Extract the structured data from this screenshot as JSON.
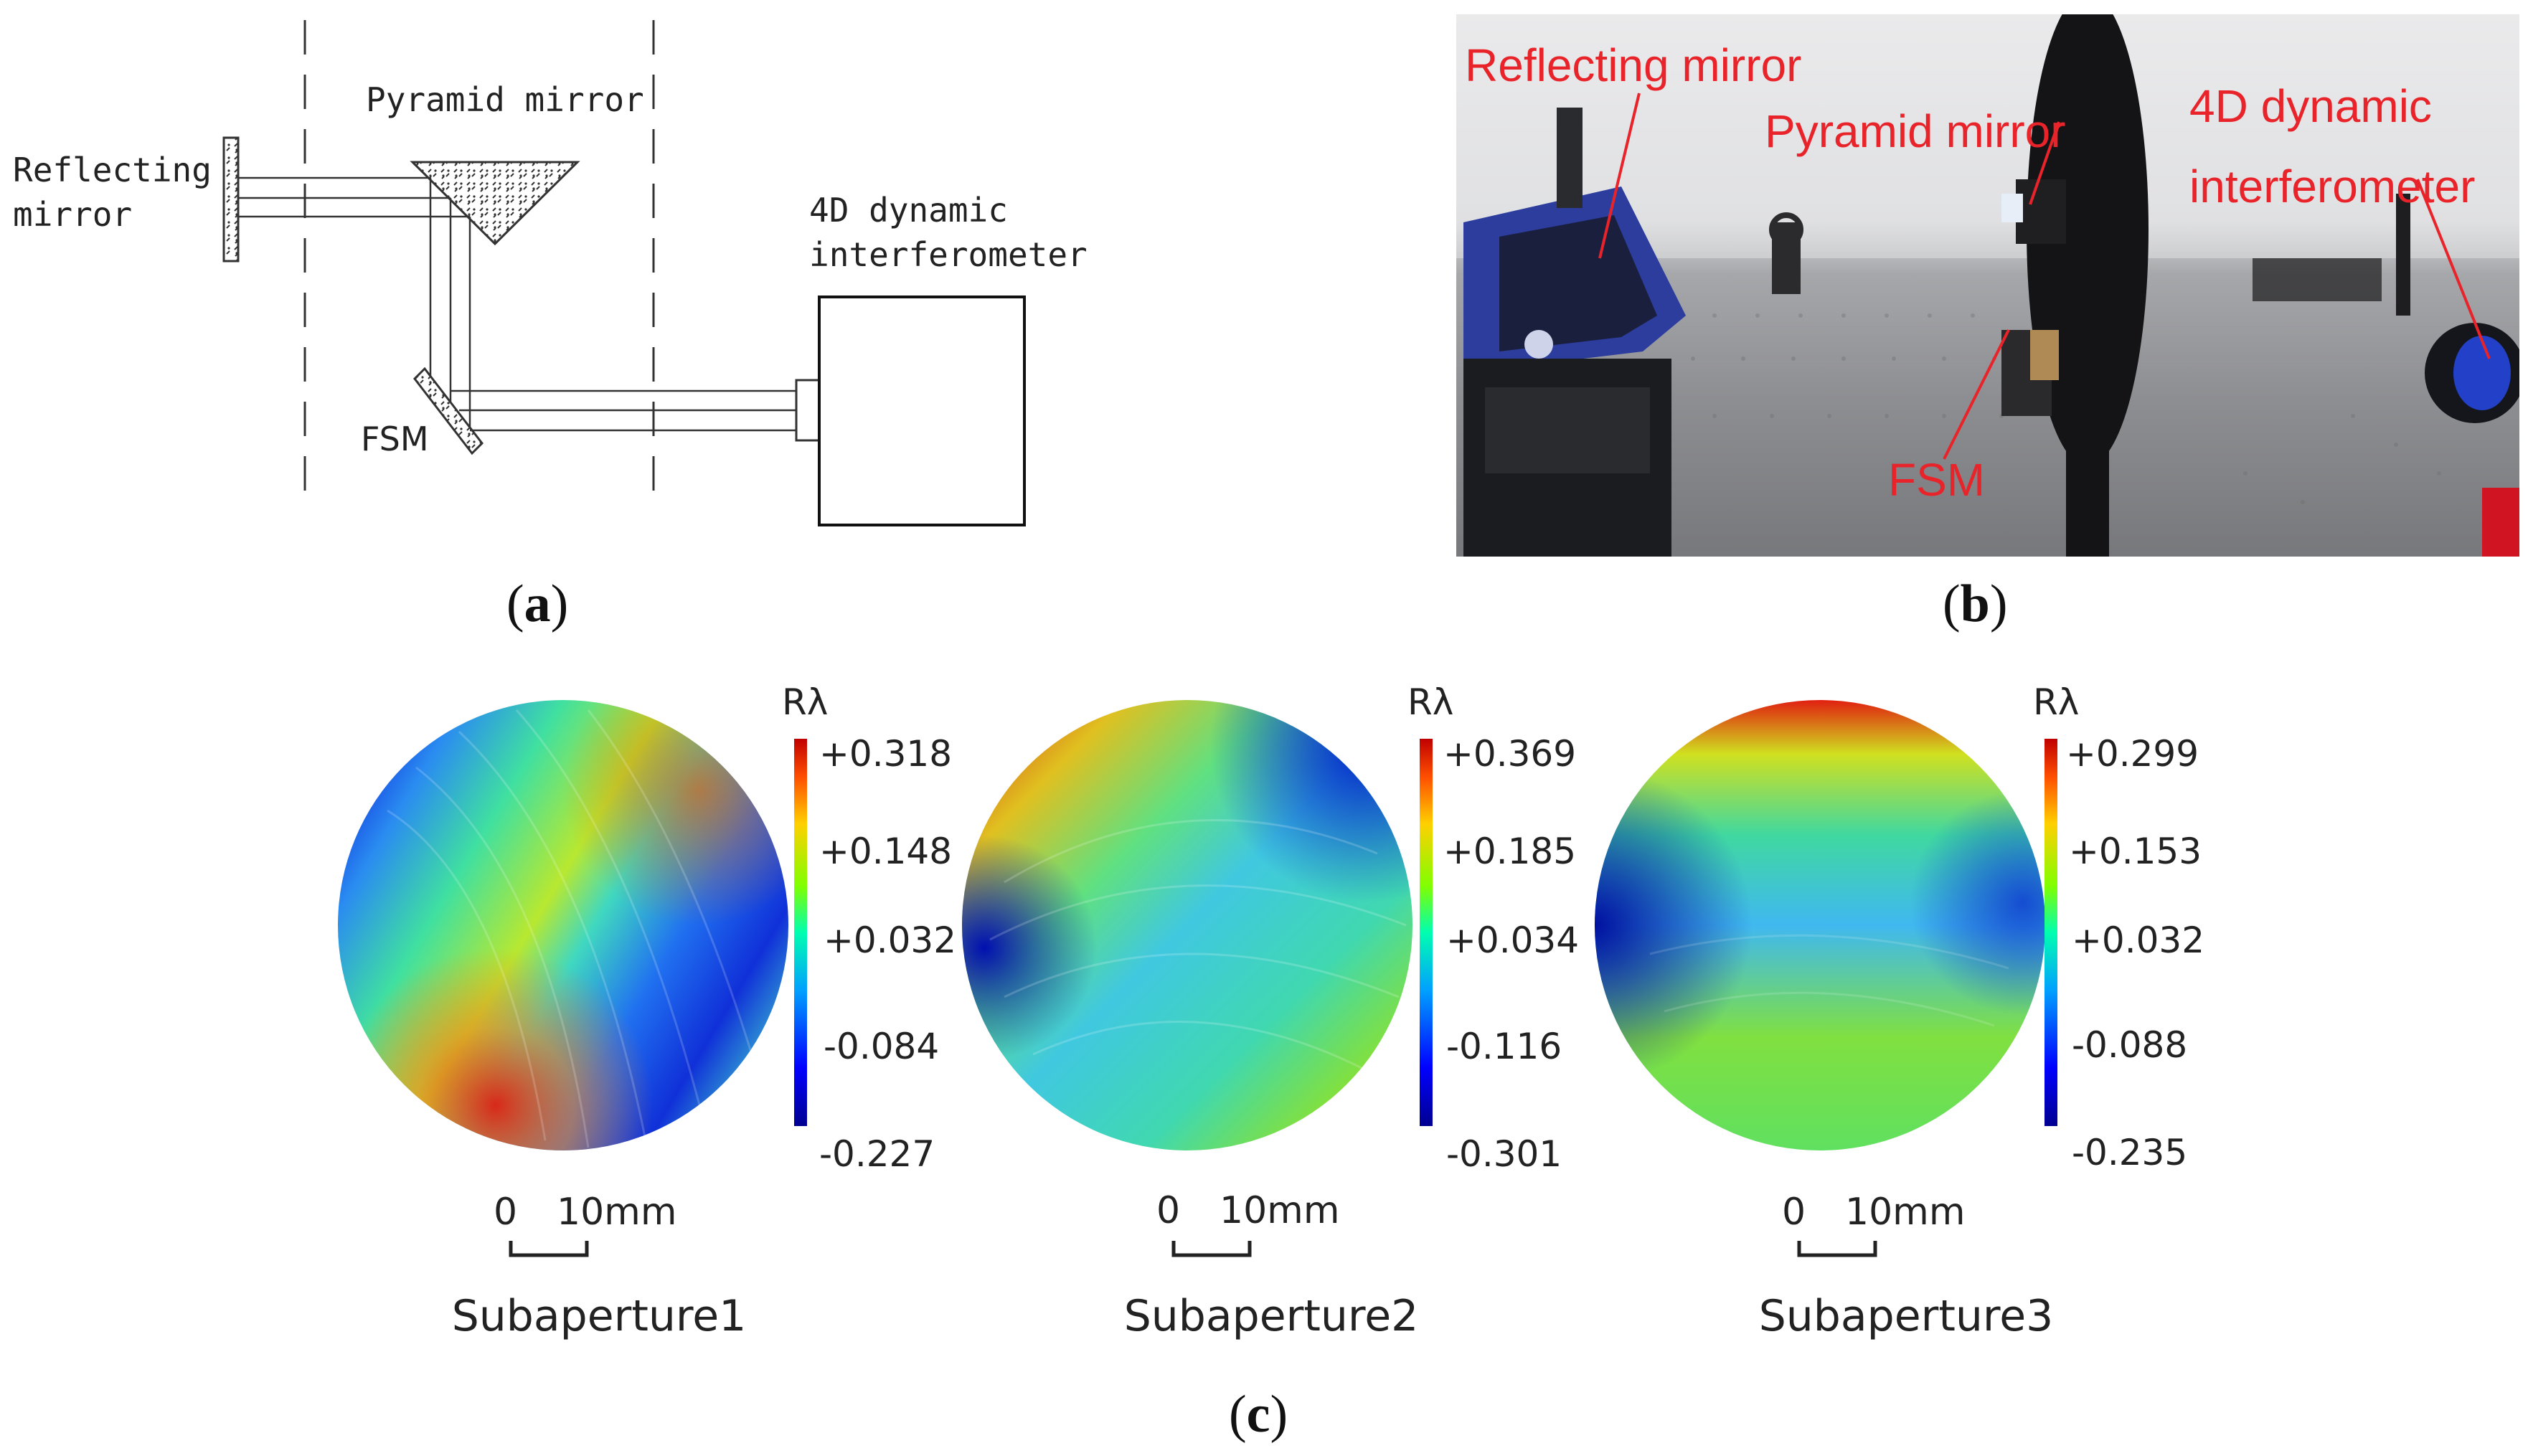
{
  "panel_a": {
    "caption_label": "a",
    "reflecting_mirror_line1": "Reflecting",
    "reflecting_mirror_line2": "mirror",
    "pyramid_mirror": "Pyramid mirror",
    "interferometer_line1": "4D dynamic",
    "interferometer_line2": "interferometer",
    "fsm": "FSM"
  },
  "panel_b": {
    "caption_label": "b",
    "labels": {
      "reflecting_mirror": "Reflecting mirror",
      "pyramid_mirror": "Pyramid mirror",
      "interferometer_line1": "4D dynamic",
      "interferometer_line2": "interferometer",
      "fsm": "FSM"
    },
    "label_color": "#e8242a"
  },
  "panel_c": {
    "caption_label": "c",
    "unit": "Rλ",
    "scale_zero": "0",
    "scale_len": "10mm",
    "colormap": [
      "#000090",
      "#0000ff",
      "#00a0ff",
      "#00ffb0",
      "#80ff00",
      "#ffd000",
      "#ff5000",
      "#c00000"
    ],
    "subapertures": [
      {
        "name": "Subaperture1",
        "ticks": [
          "+0.318",
          "+0.148",
          "+0.032",
          "-0.084",
          "-0.227"
        ]
      },
      {
        "name": "Subaperture2",
        "ticks": [
          "+0.369",
          "+0.185",
          "+0.034",
          "-0.116",
          "-0.301"
        ]
      },
      {
        "name": "Subaperture3",
        "ticks": [
          "+0.299",
          "+0.153",
          "+0.032",
          "-0.088",
          "-0.235"
        ]
      }
    ]
  }
}
